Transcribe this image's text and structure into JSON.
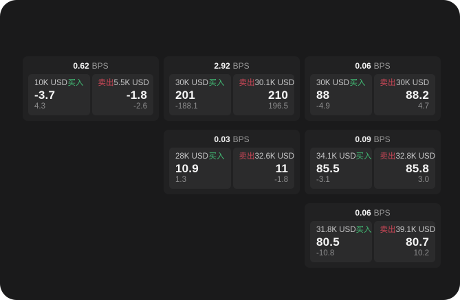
{
  "theme": {
    "page_bg": "#1a1a1b",
    "card_bg": "#212122",
    "panel_bg": "#2b2b2c",
    "buy_color": "#41b873",
    "sell_color": "#cc4757",
    "price_color": "#f5f5f5",
    "muted_color": "#8c8c8d"
  },
  "labels": {
    "bps_unit": "BPS",
    "buy": "买入",
    "sell": "卖出"
  },
  "cards": [
    {
      "bps": "0.62",
      "buy": {
        "amount": "10K USD",
        "price": "-3.7",
        "delta": "4.3"
      },
      "sell": {
        "amount": "5.5K USD",
        "price": "-1.8",
        "delta": "-2.6"
      }
    },
    {
      "bps": "2.92",
      "buy": {
        "amount": "30K USD",
        "price": "201",
        "delta": "-188.1"
      },
      "sell": {
        "amount": "30.1K USD",
        "price": "210",
        "delta": "196.5"
      }
    },
    {
      "bps": "0.06",
      "buy": {
        "amount": "30K USD",
        "price": "88",
        "delta": "-4.9"
      },
      "sell": {
        "amount": "30K USD",
        "price": "88.2",
        "delta": "4.7"
      }
    },
    {
      "bps": "0.03",
      "buy": {
        "amount": "28K USD",
        "price": "10.9",
        "delta": "1.3"
      },
      "sell": {
        "amount": "32.6K USD",
        "price": "11",
        "delta": "-1.8"
      }
    },
    {
      "bps": "0.09",
      "buy": {
        "amount": "34.1K USD",
        "price": "85.5",
        "delta": "-3.1"
      },
      "sell": {
        "amount": "32.8K USD",
        "price": "85.8",
        "delta": "3.0"
      }
    },
    {
      "bps": "0.06",
      "buy": {
        "amount": "31.8K USD",
        "price": "80.5",
        "delta": "-10.8"
      },
      "sell": {
        "amount": "39.1K USD",
        "price": "80.7",
        "delta": "10.2"
      }
    }
  ]
}
